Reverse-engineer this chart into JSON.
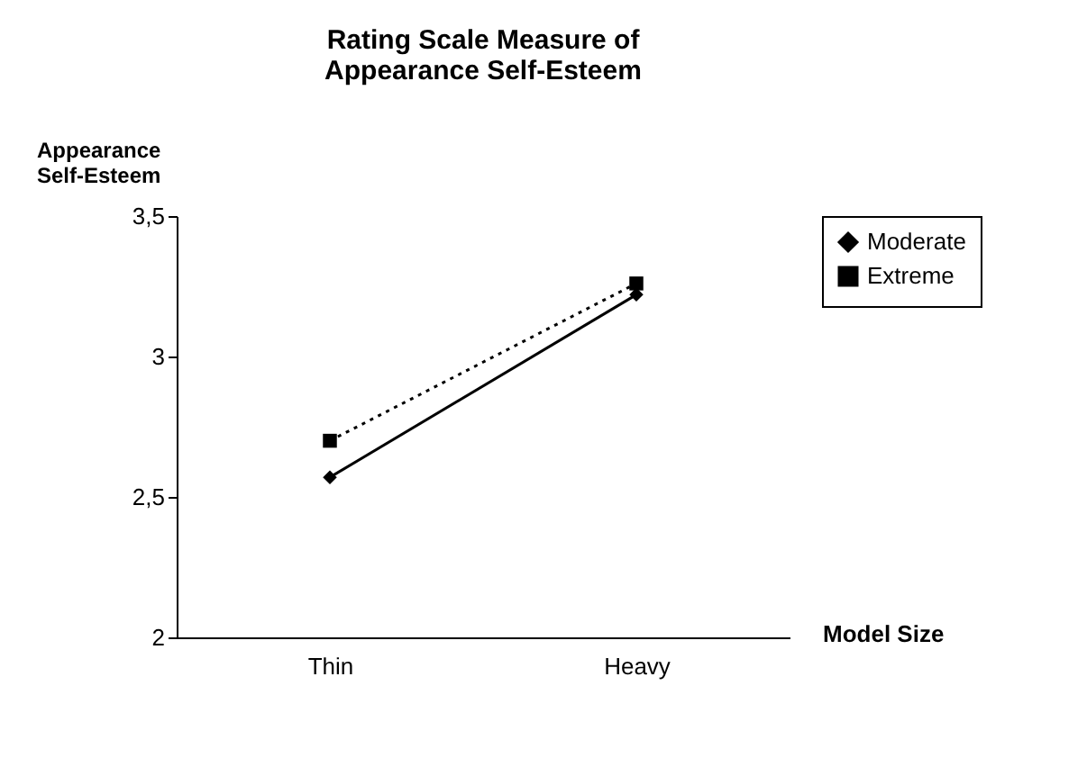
{
  "chart_data": {
    "type": "line",
    "title": "Rating Scale Measure of Appearance Self-Esteem",
    "xlabel": "Model Size",
    "ylabel": "Appearance Self-Esteem",
    "categories": [
      "Thin",
      "Heavy"
    ],
    "series": [
      {
        "name": "Moderate",
        "color": "#000000",
        "values": [
          2.57,
          3.22
        ],
        "marker": "diamond",
        "line_style": "solid"
      },
      {
        "name": "Extreme",
        "color": "#000000",
        "values": [
          2.7,
          3.26
        ],
        "marker": "square",
        "line_style": "dotted"
      }
    ],
    "ylim": [
      2,
      3.5
    ],
    "yticks": [
      {
        "value": 2,
        "label": "2"
      },
      {
        "value": 2.5,
        "label": "2,5"
      },
      {
        "value": 3,
        "label": "3"
      },
      {
        "value": 3.5,
        "label": "3,5"
      }
    ],
    "grid": false,
    "legend": "right"
  }
}
